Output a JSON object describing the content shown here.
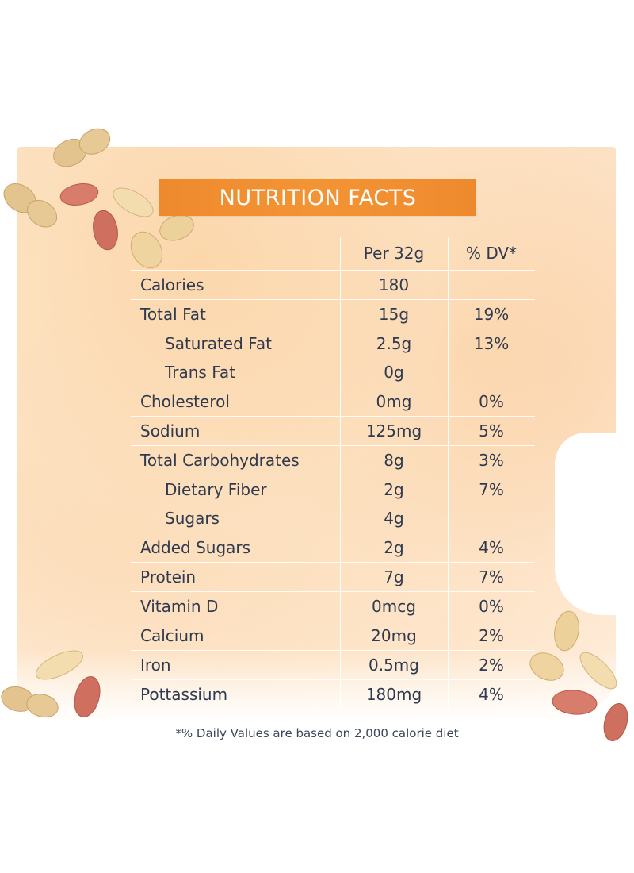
{
  "banner": {
    "title": "NUTRITION FACTS"
  },
  "table": {
    "header": {
      "amount": "Per 32g",
      "dv": "% DV*"
    },
    "rows": [
      {
        "label": "Calories",
        "amount": "180",
        "dv": "",
        "indent": false
      },
      {
        "label": "Total Fat",
        "amount": "15g",
        "dv": "19%",
        "indent": false
      },
      {
        "label": "Saturated Fat",
        "amount": "2.5g",
        "dv": "13%",
        "indent": true
      },
      {
        "label": "Trans Fat",
        "amount": "0g",
        "dv": "",
        "indent": true
      },
      {
        "label": "Cholesterol",
        "amount": "0mg",
        "dv": "0%",
        "indent": false
      },
      {
        "label": "Sodium",
        "amount": "125mg",
        "dv": "5%",
        "indent": false
      },
      {
        "label": "Total Carbohydrates",
        "amount": "8g",
        "dv": "3%",
        "indent": false
      },
      {
        "label": "Dietary Fiber",
        "amount": "2g",
        "dv": "7%",
        "indent": true
      },
      {
        "label": "Sugars",
        "amount": "4g",
        "dv": "",
        "indent": true
      },
      {
        "label": "Added Sugars",
        "amount": "2g",
        "dv": "4%",
        "indent": false
      },
      {
        "label": "Protein",
        "amount": "7g",
        "dv": "7%",
        "indent": false
      },
      {
        "label": "Vitamin D",
        "amount": "0mcg",
        "dv": "0%",
        "indent": false
      },
      {
        "label": "Calcium",
        "amount": "20mg",
        "dv": "2%",
        "indent": false
      },
      {
        "label": "Iron",
        "amount": "0.5mg",
        "dv": "2%",
        "indent": false
      },
      {
        "label": "Pottassium",
        "amount": "180mg",
        "dv": "4%",
        "indent": false
      }
    ]
  },
  "footnote": "*% Daily Values are based on 2,000 calorie diet",
  "colors": {
    "banner": "#f39434",
    "text": "#2f3a4f",
    "panel": "#fbe3c6",
    "peanut_shell": "#e3c48e",
    "peanut_skin": "#cf6f5f",
    "peanut_kernel": "#f3dcae"
  }
}
